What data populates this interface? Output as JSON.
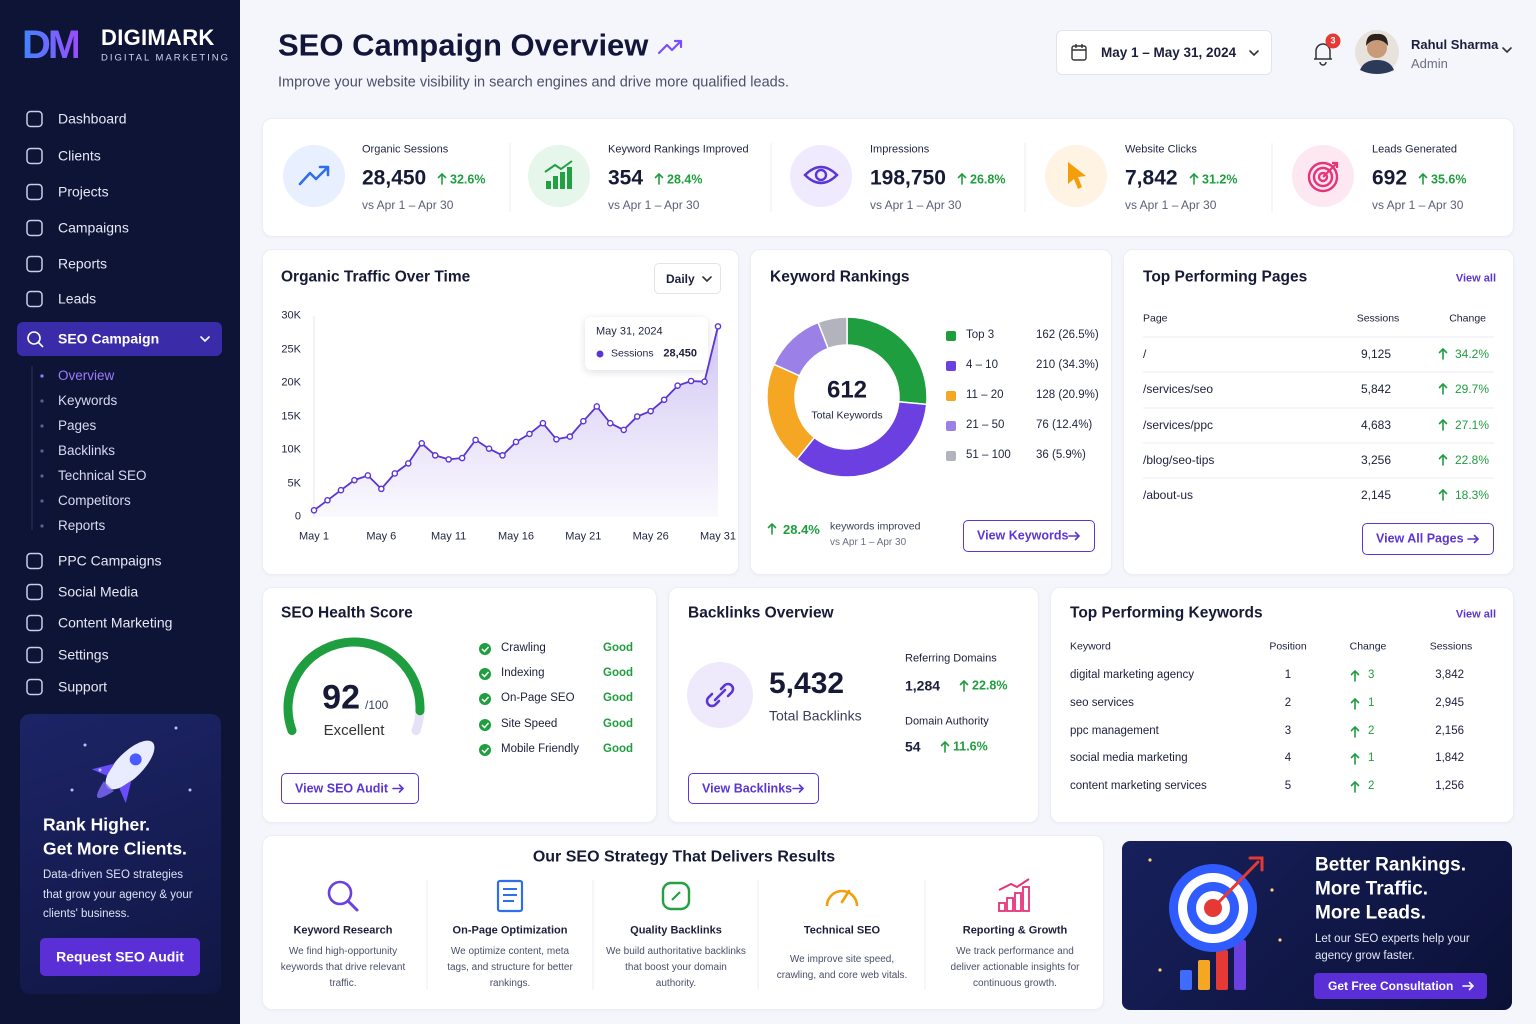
{
  "brand": {
    "logo": "DM",
    "name": "DIGIMARK",
    "tagline": "DIGITAL MARKETING"
  },
  "nav": {
    "main": [
      "Dashboard",
      "Clients",
      "Projects",
      "Campaigns",
      "Reports",
      "Leads"
    ],
    "active": "SEO Campaign",
    "sub": [
      "Overview",
      "Keywords",
      "Pages",
      "Backlinks",
      "Technical SEO",
      "Competitors",
      "Reports"
    ],
    "more": [
      "PPC Campaigns",
      "Social Media",
      "Content Marketing",
      "Settings",
      "Support"
    ]
  },
  "promo": {
    "headline": [
      "Rank Higher.",
      "Get More Clients."
    ],
    "text": "Data-driven SEO strategies that grow your agency & your clients' business.",
    "button": "Request SEO Audit"
  },
  "header": {
    "title": "SEO Campaign Overview",
    "subtitle": "Improve your website visibility in search engines and drive more qualified leads.",
    "date_range": "May 1 – May 31, 2024",
    "notifications": "3",
    "user": {
      "name": "Rahul Sharma",
      "role": "Admin"
    }
  },
  "kpis": [
    {
      "label": "Organic Sessions",
      "value": "28,450",
      "change": "32.6%",
      "compare": "vs Apr 1 – Apr 30"
    },
    {
      "label": "Keyword Rankings Improved",
      "value": "354",
      "change": "28.4%",
      "compare": "vs Apr 1 – Apr 30"
    },
    {
      "label": "Impressions",
      "value": "198,750",
      "change": "26.8%",
      "compare": "vs Apr 1 – Apr 30"
    },
    {
      "label": "Website Clicks",
      "value": "7,842",
      "change": "31.2%",
      "compare": "vs Apr 1 – Apr 30"
    },
    {
      "label": "Leads Generated",
      "value": "692",
      "change": "35.6%",
      "compare": "vs Apr 1 – Apr 30"
    }
  ],
  "traffic": {
    "title": "Organic Traffic Over Time",
    "period": "Daily",
    "chart": {
      "type": "line",
      "categories": [
        "May 1",
        null,
        null,
        null,
        null,
        "May 6",
        null,
        null,
        null,
        null,
        "May 11",
        null,
        null,
        null,
        null,
        "May 16",
        null,
        null,
        null,
        null,
        "May 21",
        null,
        null,
        null,
        null,
        "May 26",
        null,
        null,
        null,
        null,
        "May 31"
      ],
      "values": [
        1000,
        2500,
        4000,
        5500,
        6200,
        4200,
        6500,
        8000,
        11000,
        9200,
        8600,
        8800,
        11500,
        10200,
        9200,
        11200,
        12400,
        14000,
        11600,
        12000,
        14300,
        16500,
        14000,
        13000,
        15000,
        15800,
        17500,
        19600,
        20300,
        20200,
        28450
      ],
      "color": "#5b35d5",
      "grid": false,
      "ylim": [
        0,
        30000
      ],
      "yticks": [
        0,
        {
          "value": 5000,
          "label": "5K"
        },
        {
          "value": 10000,
          "label": "10K"
        },
        {
          "value": 15000,
          "label": "15K"
        },
        {
          "value": 20000,
          "label": "20K"
        },
        {
          "value": 25000,
          "label": "25K"
        },
        {
          "value": 30000,
          "label": "30K"
        }
      ],
      "tooltip": {
        "date": "May 31, 2024",
        "series": "Sessions",
        "value": "28,450"
      }
    }
  },
  "rankings": {
    "title": "Keyword Rankings",
    "chart": {
      "type": "pie",
      "categories": [
        "Top 3",
        "4 – 10",
        "11 – 20",
        "21 – 50",
        "51 – 100"
      ],
      "values": [
        162,
        210,
        128,
        76,
        36
      ],
      "value_labels": [
        "162 (26.5%)",
        "210 (34.3%)",
        "128 (20.9%)",
        "76 (12.4%)",
        "36 (5.9%)"
      ],
      "colors": [
        "#1e9e3e",
        "#6b3fe0",
        "#f5a623",
        "#9b80e8",
        "#b3b3bd"
      ],
      "total": "612",
      "total_label": "Total Keywords"
    },
    "improved": "28.4%",
    "improved_label": "keywords improved",
    "compare": "vs Apr 1 – Apr 30",
    "button": "View Keywords"
  },
  "top_pages": {
    "title": "Top Performing Pages",
    "link": "View all",
    "columns": [
      "Page",
      "Sessions",
      "Change"
    ],
    "rows": [
      [
        "/",
        "9,125",
        "34.2%"
      ],
      [
        "/services/seo",
        "5,842",
        "29.7%"
      ],
      [
        "/services/ppc",
        "4,683",
        "27.1%"
      ],
      [
        "/blog/seo-tips",
        "3,256",
        "22.8%"
      ],
      [
        "/about-us",
        "2,145",
        "18.3%"
      ]
    ],
    "button": "View All Pages"
  },
  "health": {
    "title": "SEO Health Score",
    "gauge": {
      "type": "gauge",
      "value": 92,
      "max": 100,
      "max_label": "/100",
      "status": "Excellent",
      "color": "#1e9e3e"
    },
    "checks": [
      {
        "name": "Crawling",
        "status": "Good"
      },
      {
        "name": "Indexing",
        "status": "Good"
      },
      {
        "name": "On-Page SEO",
        "status": "Good"
      },
      {
        "name": "Site Speed",
        "status": "Good"
      },
      {
        "name": "Mobile Friendly",
        "status": "Good"
      }
    ],
    "button": "View SEO Audit"
  },
  "backlinks": {
    "title": "Backlinks Overview",
    "total": "5,432",
    "total_label": "Total Backlinks",
    "metrics": [
      {
        "label": "Referring Domains",
        "value": "1,284",
        "change": "22.8%"
      },
      {
        "label": "Domain Authority",
        "value": "54",
        "change": "11.6%"
      }
    ],
    "button": "View Backlinks"
  },
  "top_keywords": {
    "title": "Top Performing Keywords",
    "link": "View all",
    "columns": [
      "Keyword",
      "Position",
      "Change",
      "Sessions"
    ],
    "rows": [
      [
        "digital marketing agency",
        "1",
        "3",
        "3,842"
      ],
      [
        "seo services",
        "2",
        "1",
        "2,945"
      ],
      [
        "ppc management",
        "3",
        "2",
        "2,156"
      ],
      [
        "social media marketing",
        "4",
        "1",
        "1,842"
      ],
      [
        "content marketing services",
        "5",
        "2",
        "1,256"
      ]
    ]
  },
  "strategy": {
    "title": "Our SEO Strategy That Delivers Results",
    "items": [
      {
        "title": "Keyword Research",
        "text": "We find high-opportunity keywords that drive relevant traffic."
      },
      {
        "title": "On-Page Optimization",
        "text": "We optimize content, meta tags, and structure for better rankings."
      },
      {
        "title": "Quality Backlinks",
        "text": "We build authoritative backlinks that boost your domain authority."
      },
      {
        "title": "Technical SEO",
        "text": "We improve site speed, crawling, and core web vitals."
      },
      {
        "title": "Reporting & Growth",
        "text": "We track performance and deliver actionable insights for continuous growth."
      }
    ]
  },
  "cta": {
    "headline": [
      "Better Rankings.",
      "More Traffic.",
      "More Leads."
    ],
    "text": "Let our SEO experts help your agency grow faster.",
    "button": "Get Free Consultation"
  }
}
